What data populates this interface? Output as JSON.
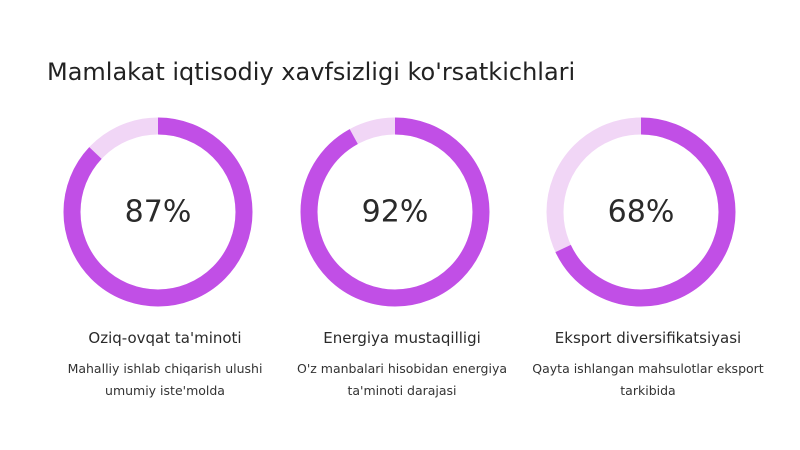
{
  "page": {
    "title": "Mamlakat iqtisodiy xavfsizligi ko'rsatkichlari"
  },
  "colors": {
    "ring_fill": "#c14fe6",
    "ring_track": "#f1d6f6"
  },
  "chart_data": {
    "type": "pie",
    "title": "Mamlakat iqtisodiy xavfsizligi ko'rsatkichlari",
    "items": [
      {
        "value": 87,
        "label": "87%",
        "title": "Oziq-ovqat ta'minoti",
        "description": "Mahalliy ishlab chiqarish ulushi umumiy iste'molda"
      },
      {
        "value": 92,
        "label": "92%",
        "title": "Energiya mustaqilligi",
        "description": "O'z manbalari hisobidan energiya ta'minoti darajasi"
      },
      {
        "value": 68,
        "label": "68%",
        "title": "Eksport diversifikatsiyasi",
        "description": "Qayta ishlangan mahsulotlar eksport tarkibida"
      }
    ]
  }
}
